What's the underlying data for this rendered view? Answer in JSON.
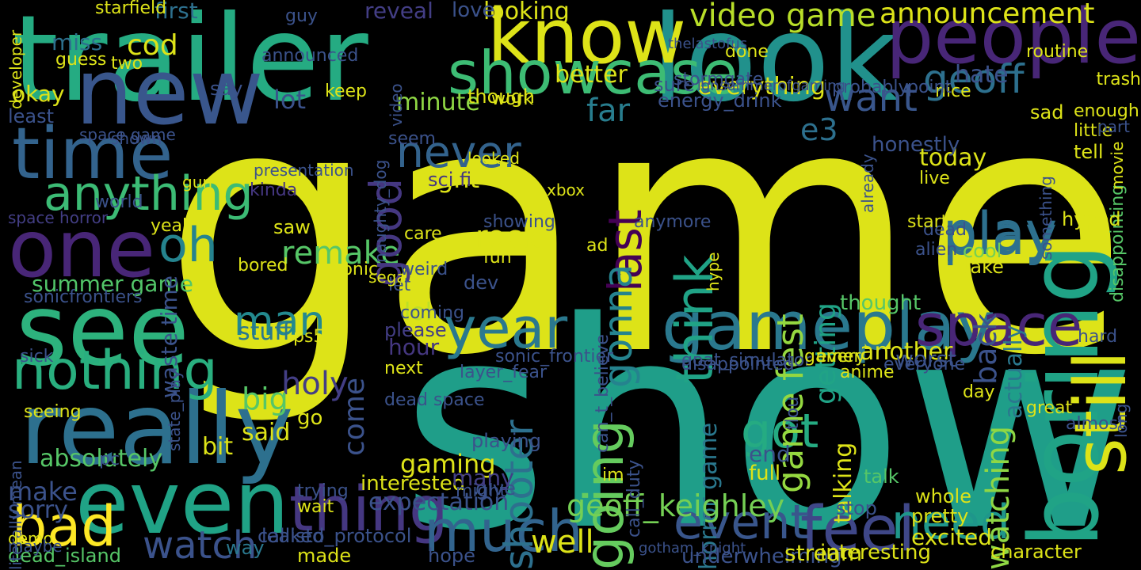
{
  "words": [
    {
      "text": "game",
      "color": "#dde318"
    },
    {
      "text": "show",
      "color": "#1f9e89"
    },
    {
      "text": "trailer",
      "color": "#25ab82"
    },
    {
      "text": "look",
      "color": "#21918c"
    },
    {
      "text": "know",
      "color": "#dde318"
    },
    {
      "text": "people",
      "color": "#482677"
    },
    {
      "text": "new",
      "color": "#39568c"
    },
    {
      "text": "see",
      "color": "#2db27d"
    },
    {
      "text": "one",
      "color": "#482677"
    },
    {
      "text": "time",
      "color": "#33638d"
    },
    {
      "text": "really",
      "color": "#2d708e"
    },
    {
      "text": "even",
      "color": "#20a386"
    },
    {
      "text": "boring",
      "color": "#20a386"
    },
    {
      "text": "still",
      "color": "#dde318"
    },
    {
      "text": "nothing",
      "color": "#29af7f"
    },
    {
      "text": "showcase",
      "color": "#3dbc74"
    },
    {
      "text": "bad",
      "color": "#fde725"
    },
    {
      "text": "thing",
      "color": "#453781"
    },
    {
      "text": "much",
      "color": "#32648e"
    },
    {
      "text": "anything",
      "color": "#3cbb75"
    },
    {
      "text": "gameplay",
      "color": "#2a788e"
    },
    {
      "text": "feel",
      "color": "#3f4788"
    },
    {
      "text": "year",
      "color": "#2a788e"
    },
    {
      "text": "think",
      "color": "#20a386"
    },
    {
      "text": "going",
      "color": "#65cb5e"
    },
    {
      "text": "space",
      "color": "#482677"
    },
    {
      "text": "play",
      "color": "#2d708e"
    },
    {
      "text": "want",
      "color": "#39568c"
    },
    {
      "text": "geoff",
      "color": "#2d708e"
    },
    {
      "text": "watch",
      "color": "#3b528b"
    },
    {
      "text": "event",
      "color": "#39568c"
    },
    {
      "text": "need",
      "color": "#1f968b"
    },
    {
      "text": "oh",
      "color": "#25838e"
    },
    {
      "text": "remake",
      "color": "#56c667"
    },
    {
      "text": "last",
      "color": "#440154"
    },
    {
      "text": "good",
      "color": "#453781"
    },
    {
      "text": "never",
      "color": "#33638d"
    },
    {
      "text": "got",
      "color": "#25ab82"
    },
    {
      "text": "shooter",
      "color": "#2d708e"
    },
    {
      "text": "man",
      "color": "#23898e"
    },
    {
      "text": "gonna",
      "color": "#25838e"
    },
    {
      "text": "watching",
      "color": "#8fd744"
    },
    {
      "text": "announcement",
      "color": "#dde318"
    },
    {
      "text": "video game",
      "color": "#b8de29"
    },
    {
      "text": "far",
      "color": "#287d8e"
    },
    {
      "text": "game fest",
      "color": "#95d840"
    },
    {
      "text": "summer game",
      "color": "#52c569"
    },
    {
      "text": "rock",
      "color": "#dde318"
    },
    {
      "text": "holy",
      "color": "#433e85"
    },
    {
      "text": "stuff",
      "color": "#2a788e"
    },
    {
      "text": "horror game",
      "color": "#2a788e"
    },
    {
      "text": "getting",
      "color": "#20a386"
    },
    {
      "text": "e3",
      "color": "#2d708e"
    },
    {
      "text": "today",
      "color": "#dde318"
    },
    {
      "text": "back",
      "color": "#3b528b"
    },
    {
      "text": "actually",
      "color": "#2a788e"
    },
    {
      "text": "right",
      "color": "#dde318"
    },
    {
      "text": "lol",
      "color": "#bddf26"
    },
    {
      "text": "well",
      "color": "#dde318"
    },
    {
      "text": "big",
      "color": "#56c667"
    },
    {
      "text": "make",
      "color": "#3b528b"
    },
    {
      "text": "sorry",
      "color": "#3b528b"
    },
    {
      "text": "gaming",
      "color": "#dde318"
    },
    {
      "text": "hour",
      "color": "#453781"
    },
    {
      "text": "cod",
      "color": "#dde318"
    },
    {
      "text": "lot",
      "color": "#3b528b"
    },
    {
      "text": "first",
      "color": "#2d708e"
    },
    {
      "text": "guy",
      "color": "#3b528b"
    },
    {
      "text": "miss",
      "color": "#2d708e"
    },
    {
      "text": "reveal",
      "color": "#433e85"
    },
    {
      "text": "looking",
      "color": "#dde318"
    },
    {
      "text": "better",
      "color": "#dde318"
    },
    {
      "text": "love",
      "color": "#3b528b"
    },
    {
      "text": "hate",
      "color": "#3b528b"
    },
    {
      "text": "minute",
      "color": "#8fd744"
    },
    {
      "text": "everything",
      "color": "#dde318"
    },
    {
      "text": "sure",
      "color": "#3b528b"
    },
    {
      "text": "honestly",
      "color": "#3b528b"
    },
    {
      "text": "kinda",
      "color": "#453781"
    },
    {
      "text": "sci fi",
      "color": "#453781"
    },
    {
      "text": "play",
      "color": "#2d708e"
    },
    {
      "text": "something",
      "color": "#3b528b"
    },
    {
      "text": "disappointing",
      "color": "#56c667"
    },
    {
      "text": "cool",
      "color": "#75d054"
    },
    {
      "text": "take",
      "color": "#dde318"
    },
    {
      "text": "thought",
      "color": "#56c667"
    },
    {
      "text": "another",
      "color": "#dde318"
    },
    {
      "text": "worst",
      "color": "#3b528b"
    },
    {
      "text": "everyone",
      "color": "#3b528b"
    },
    {
      "text": "talk",
      "color": "#56c667"
    },
    {
      "text": "excited",
      "color": "#dde318"
    },
    {
      "text": "character",
      "color": "#dde318"
    },
    {
      "text": "long",
      "color": "#3b528b"
    },
    {
      "text": "geoff_keighley",
      "color": "#75d054"
    },
    {
      "text": "callisto_protocol",
      "color": "#3b528b"
    },
    {
      "text": "way",
      "color": "#2a788e"
    },
    {
      "text": "made",
      "color": "#dde318"
    },
    {
      "text": "underwhelming",
      "color": "#3b528b"
    },
    {
      "text": "stream",
      "color": "#dde318"
    },
    {
      "text": "interesting",
      "color": "#dde318"
    },
    {
      "text": "leaked",
      "color": "#3b528b"
    },
    {
      "text": "dead_island",
      "color": "#56c667"
    },
    {
      "text": "hope",
      "color": "#3b528b"
    },
    {
      "text": "expectation",
      "color": "#3b528b"
    },
    {
      "text": "interested",
      "color": "#dde318"
    },
    {
      "text": "come",
      "color": "#3b528b"
    },
    {
      "text": "give",
      "color": "#3b528b"
    },
    {
      "text": "many",
      "color": "#433e85"
    },
    {
      "text": "said",
      "color": "#dde318"
    },
    {
      "text": "go",
      "color": "#dde318"
    },
    {
      "text": "bit",
      "color": "#dde318"
    },
    {
      "text": "absolutely",
      "color": "#56c667"
    },
    {
      "text": "pc",
      "color": "#3b528b"
    },
    {
      "text": "end",
      "color": "#3b528b"
    },
    {
      "text": "full",
      "color": "#dde318"
    },
    {
      "text": "talking",
      "color": "#dde318"
    },
    {
      "text": "stop",
      "color": "#3b528b"
    },
    {
      "text": "pretty",
      "color": "#dde318"
    },
    {
      "text": "whole",
      "color": "#dde318"
    },
    {
      "text": "dead",
      "color": "#3b528b"
    },
    {
      "text": "alien",
      "color": "#3b528b"
    },
    {
      "text": "hyped",
      "color": "#dde318"
    },
    {
      "text": "start",
      "color": "#dde318"
    },
    {
      "text": "live",
      "color": "#dde318"
    },
    {
      "text": "tell",
      "color": "#dde318"
    },
    {
      "text": "little",
      "color": "#dde318"
    },
    {
      "text": "enough",
      "color": "#dde318"
    },
    {
      "text": "sad",
      "color": "#dde318"
    },
    {
      "text": "nice",
      "color": "#dde318"
    },
    {
      "text": "point",
      "color": "#3b528b"
    },
    {
      "text": "probably",
      "color": "#3b528b"
    },
    {
      "text": "done",
      "color": "#dde318"
    },
    {
      "text": "announced",
      "color": "#3b528b"
    },
    {
      "text": "two",
      "color": "#dde318"
    },
    {
      "text": "guess",
      "color": "#dde318"
    },
    {
      "text": "okay",
      "color": "#dde318"
    },
    {
      "text": "least",
      "color": "#3b528b"
    },
    {
      "text": "say",
      "color": "#3b528b"
    },
    {
      "text": "keep",
      "color": "#dde318"
    },
    {
      "text": "space game",
      "color": "#3b528b"
    },
    {
      "text": "shown",
      "color": "#3b528b"
    },
    {
      "text": "seem",
      "color": "#3b528b"
    },
    {
      "text": "space horror",
      "color": "#433e85"
    },
    {
      "text": "world",
      "color": "#3b528b"
    },
    {
      "text": "yeah",
      "color": "#dde318"
    },
    {
      "text": "bored",
      "color": "#dde318"
    },
    {
      "text": "waste time",
      "color": "#3b528b"
    },
    {
      "text": "ps5",
      "color": "#dde318"
    },
    {
      "text": "please",
      "color": "#433e85"
    },
    {
      "text": "next",
      "color": "#dde318"
    },
    {
      "text": "let",
      "color": "#3b528b"
    },
    {
      "text": "weird",
      "color": "#3b528b"
    },
    {
      "text": "coming",
      "color": "#3b528b"
    },
    {
      "text": "dev",
      "color": "#3b528b"
    },
    {
      "text": "fun",
      "color": "#dde318"
    },
    {
      "text": "showing",
      "color": "#3b528b"
    },
    {
      "text": "sick",
      "color": "#3b528b"
    },
    {
      "text": "seeing",
      "color": "#dde318"
    },
    {
      "text": "sonicfrontiers",
      "color": "#3b528b"
    },
    {
      "text": "goat_simulator",
      "color": "#3b528b"
    },
    {
      "text": "disappointed",
      "color": "#3b528b"
    },
    {
      "text": "call_duty",
      "color": "#3b528b"
    },
    {
      "text": "tlou",
      "color": "#3b528b"
    },
    {
      "text": "dead space",
      "color": "#3b528b"
    },
    {
      "text": "sonic_frontier",
      "color": "#3b528b"
    },
    {
      "text": "gamer",
      "color": "#dde318"
    },
    {
      "text": "every",
      "color": "#dde318"
    },
    {
      "text": "anime",
      "color": "#dde318"
    },
    {
      "text": "day",
      "color": "#dde318"
    },
    {
      "text": "hard",
      "color": "#3b528b"
    },
    {
      "text": "im",
      "color": "#dde318"
    },
    {
      "text": "trying",
      "color": "#3b528b"
    },
    {
      "text": "wait",
      "color": "#dde318"
    },
    {
      "text": "might",
      "color": "#3b528b"
    },
    {
      "text": "almost",
      "color": "#3b528b"
    },
    {
      "text": "great",
      "color": "#dde318"
    },
    {
      "text": "playing",
      "color": "#3b528b"
    },
    {
      "text": "work",
      "color": "#dde318"
    },
    {
      "text": "though",
      "color": "#dde318"
    },
    {
      "text": "care",
      "color": "#dde318"
    },
    {
      "text": "video",
      "color": "#3b528b"
    },
    {
      "text": "trash",
      "color": "#dde318"
    },
    {
      "text": "developer",
      "color": "#dde318"
    },
    {
      "text": "starfield",
      "color": "#dde318"
    },
    {
      "text": "xbox",
      "color": "#dde318"
    },
    {
      "text": "sonic",
      "color": "#dde318"
    },
    {
      "text": "already",
      "color": "#3b528b"
    },
    {
      "text": "ad",
      "color": "#dde318"
    },
    {
      "text": "anymore",
      "color": "#3b528b"
    },
    {
      "text": "can_t_believe",
      "color": "#3b528b"
    },
    {
      "text": "saw",
      "color": "#dde318"
    },
    {
      "text": "gun",
      "color": "#dde318"
    },
    {
      "text": "literally",
      "color": "#3b528b"
    },
    {
      "text": "demo",
      "color": "#dde318"
    },
    {
      "text": "mean",
      "color": "#3b528b"
    },
    {
      "text": "maybe",
      "color": "#3b528b"
    },
    {
      "text": "hype",
      "color": "#dde318"
    },
    {
      "text": "naughty_dog",
      "color": "#3b528b"
    },
    {
      "text": "state_play",
      "color": "#3b528b"
    },
    {
      "text": "energy_drink",
      "color": "#3b528b"
    },
    {
      "text": "stormgate",
      "color": "#3b528b"
    },
    {
      "text": "layer_fear",
      "color": "#3b528b"
    },
    {
      "text": "movie",
      "color": "#dde318"
    },
    {
      "text": "part",
      "color": "#3b528b"
    },
    {
      "text": "routine",
      "color": "#dde318"
    },
    {
      "text": "presentation",
      "color": "#3b528b"
    },
    {
      "text": "looked",
      "color": "#dde318"
    },
    {
      "text": "sega",
      "color": "#dde318"
    },
    {
      "text": "gotham_knight",
      "color": "#3b528b"
    },
    {
      "text": "thelastofus",
      "color": "#3b528b"
    },
    {
      "text": "ignsummerofgaming",
      "color": "#3b528b"
    }
  ]
}
